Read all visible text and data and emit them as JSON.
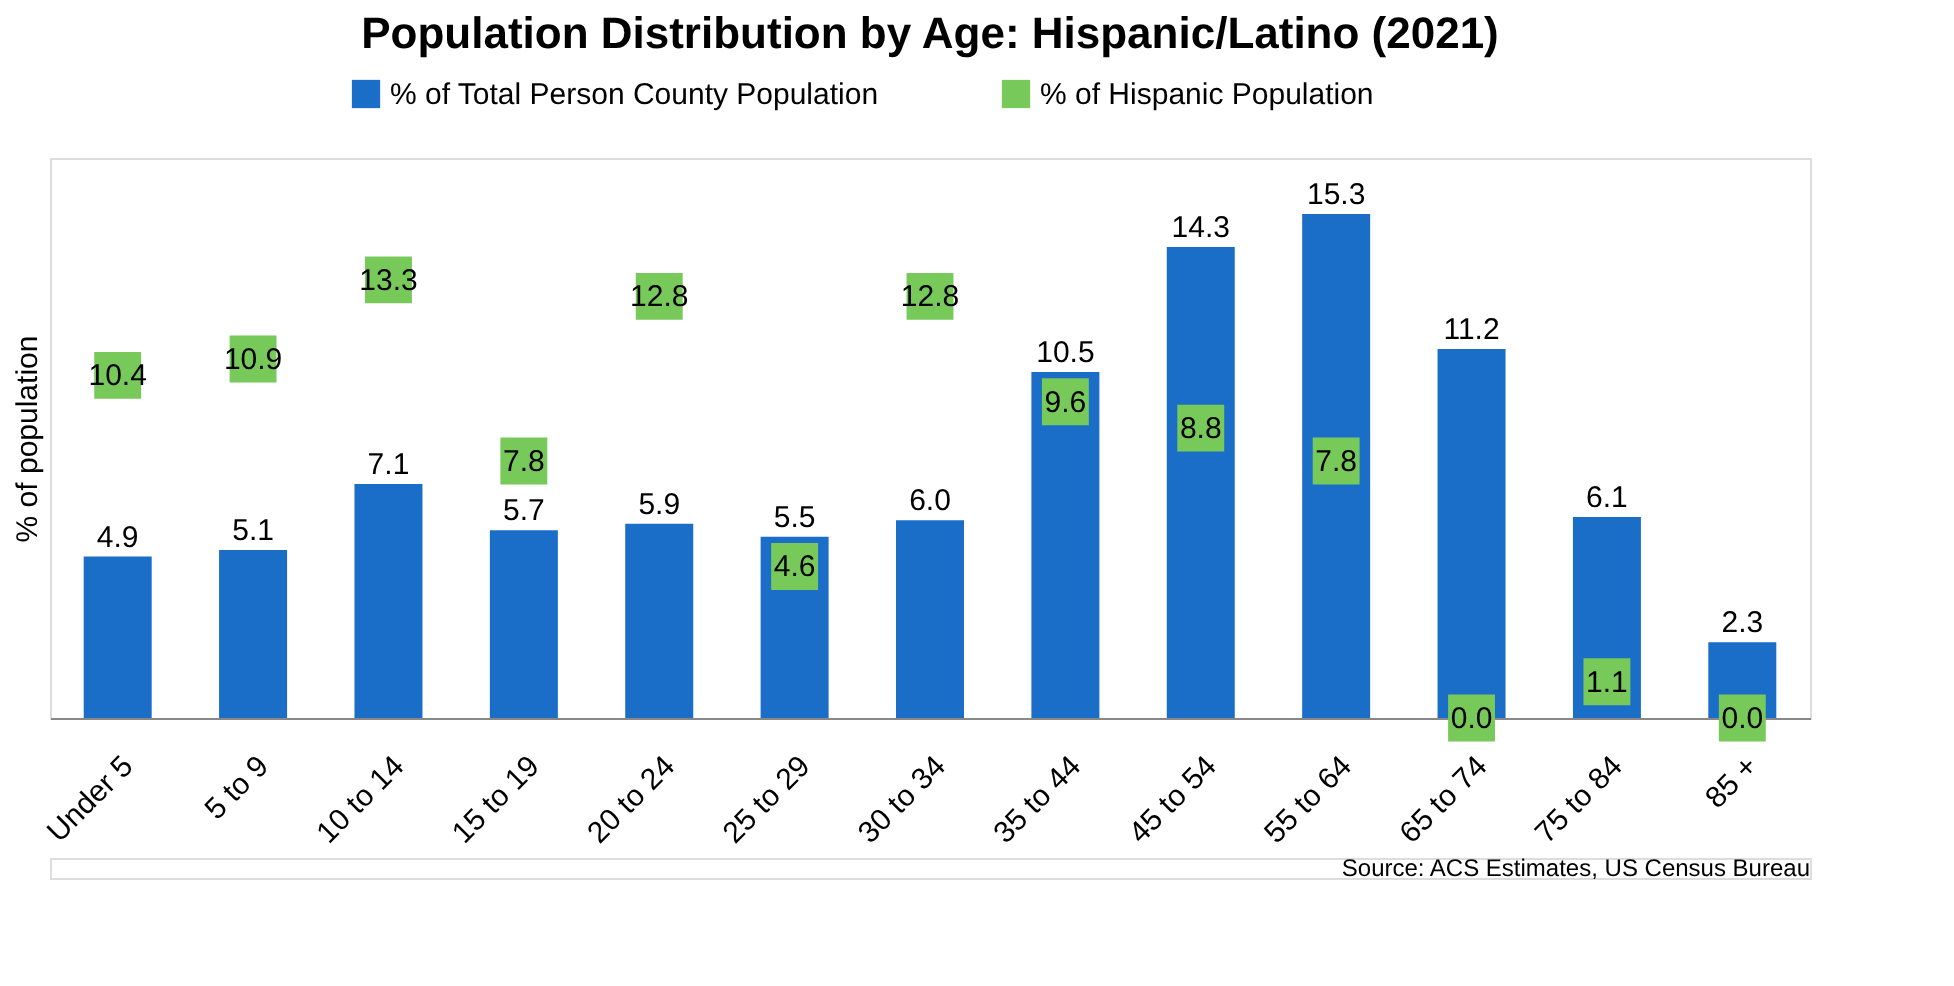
{
  "chart_data": {
    "type": "bar",
    "title": "Population Distribution by Age: Hispanic/Latino (2021)",
    "ylabel": "% of population",
    "categories": [
      "Under 5",
      "5 to 9",
      "10 to 14",
      "15 to 19",
      "20 to 24",
      "25 to 29",
      "30 to 34",
      "35 to 44",
      "45 to 54",
      "55 to 64",
      "65 to 74",
      "75 to 84",
      "85 +"
    ],
    "series": [
      {
        "name": "% of Total Person County Population",
        "color": "#1a6ec8",
        "values": [
          4.9,
          5.1,
          7.1,
          5.7,
          5.9,
          5.5,
          6.0,
          10.5,
          14.3,
          15.3,
          11.2,
          6.1,
          2.3
        ],
        "value_labels": [
          "4.9",
          "5.1",
          "7.1",
          "5.7",
          "5.9",
          "5.5",
          "6.0",
          "10.5",
          "14.3",
          "15.3",
          "11.2",
          "6.1",
          "2.3"
        ]
      },
      {
        "name": "% of Hispanic Population",
        "color": "#77c95a",
        "type": "scatter",
        "marker": "square",
        "values": [
          10.4,
          10.9,
          13.3,
          7.8,
          12.8,
          4.6,
          12.8,
          9.6,
          8.8,
          7.8,
          0.0,
          1.1,
          0.0
        ],
        "value_labels": [
          "10.4",
          "10.9",
          "13.3",
          "7.8",
          "12.8",
          "4.6",
          "12.8",
          "9.6",
          "8.8",
          "7.8",
          "0.0",
          "1.1",
          "0.0"
        ]
      }
    ],
    "ylim": [
      0,
      17
    ],
    "legend": "top",
    "tick_labels": "x",
    "annotations": [
      "Source: ACS Estimates, US Census Bureau"
    ]
  }
}
